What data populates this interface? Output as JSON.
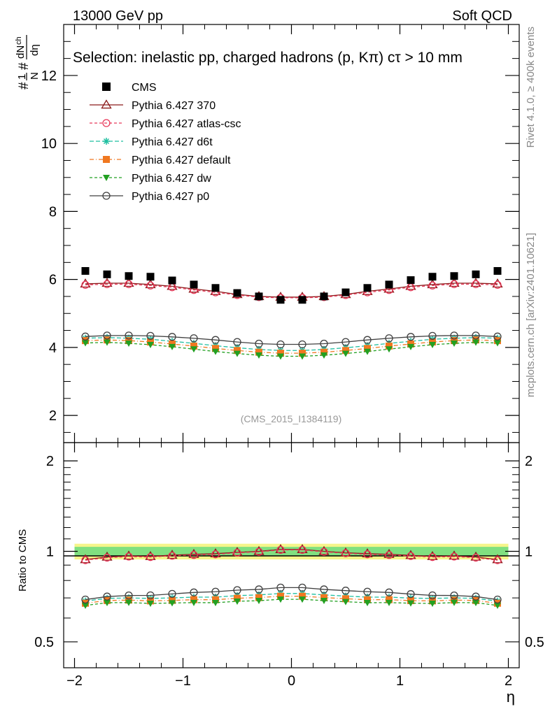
{
  "header": {
    "energy": "13000 GeV pp",
    "category": "Soft QCD",
    "selection": "Selection: inelastic pp, charged hadrons (p, Kπ) cτ > 10 mm",
    "watermark": "(CMS_2015_I1384119)",
    "rivet": "Rivet 4.1.0, ≥ 400k events",
    "mcplots": "mcplots.cern.ch [arXiv:2401.10621]"
  },
  "chart_data": {
    "type": "line",
    "xlabel": "η",
    "ylabel_main": "dN_ch/dη (1/N)",
    "ylabel_ratio": "Ratio to CMS",
    "xlim": [
      -2.1,
      2.1
    ],
    "ylim_main": [
      1.2,
      13.5
    ],
    "ylim_ratio": [
      0.41,
      2.3
    ],
    "ratio_scale": "log",
    "x_ticks": [
      -2,
      -1,
      0,
      1,
      2
    ],
    "x_tick_labels": [
      "−2",
      "−1",
      "0",
      "1",
      "2"
    ],
    "y_ticks_main": [
      2,
      4,
      6,
      8,
      10,
      12
    ],
    "y_tick_labels_main": [
      "2",
      "4",
      "6",
      "8",
      "10",
      "12"
    ],
    "y_ticks_ratio": [
      0.5,
      1,
      2
    ],
    "y_tick_labels_ratio": [
      "0.5",
      "1",
      "2"
    ],
    "x": [
      -1.9,
      -1.7,
      -1.5,
      -1.3,
      -1.1,
      -0.9,
      -0.7,
      -0.5,
      -0.3,
      -0.1,
      0.1,
      0.3,
      0.5,
      0.7,
      0.9,
      1.1,
      1.3,
      1.5,
      1.7,
      1.9
    ],
    "data": {
      "name": "CMS",
      "color": "#000000",
      "values": [
        6.25,
        6.15,
        6.1,
        6.08,
        5.97,
        5.85,
        5.75,
        5.6,
        5.5,
        5.4,
        5.4,
        5.5,
        5.62,
        5.75,
        5.85,
        5.98,
        6.08,
        6.1,
        6.15,
        6.25
      ]
    },
    "ratio_band": {
      "inner": 0.035,
      "outer": 0.06,
      "inner_color": "#80e080",
      "outer_color": "#f5f58a"
    },
    "series": [
      {
        "name": "Pythia 6.427 370",
        "color": "#8b1a1a",
        "marker": "triangle-open",
        "dash": "solid",
        "values": [
          5.87,
          5.89,
          5.89,
          5.85,
          5.8,
          5.72,
          5.65,
          5.56,
          5.5,
          5.48,
          5.48,
          5.5,
          5.56,
          5.65,
          5.72,
          5.8,
          5.85,
          5.89,
          5.89,
          5.87
        ]
      },
      {
        "name": "Pythia 6.427 atlas-csc",
        "color": "#e8395a",
        "marker": "circle-open",
        "dash": "4,3",
        "values": [
          5.84,
          5.86,
          5.86,
          5.82,
          5.77,
          5.69,
          5.62,
          5.54,
          5.48,
          5.46,
          5.46,
          5.48,
          5.54,
          5.62,
          5.69,
          5.77,
          5.82,
          5.86,
          5.86,
          5.84
        ]
      },
      {
        "name": "Pythia 6.427 d6t",
        "color": "#1fbfa0",
        "marker": "star",
        "dash": "6,3",
        "values": [
          4.27,
          4.29,
          4.27,
          4.24,
          4.18,
          4.12,
          4.05,
          3.99,
          3.94,
          3.91,
          3.91,
          3.94,
          3.99,
          4.05,
          4.12,
          4.18,
          4.24,
          4.27,
          4.29,
          4.27
        ]
      },
      {
        "name": "Pythia 6.427 default",
        "color": "#f07820",
        "marker": "square",
        "dash": "6,3,1,3",
        "values": [
          4.2,
          4.22,
          4.2,
          4.16,
          4.1,
          4.04,
          3.97,
          3.91,
          3.86,
          3.83,
          3.83,
          3.86,
          3.91,
          3.97,
          4.04,
          4.1,
          4.16,
          4.2,
          4.22,
          4.2
        ]
      },
      {
        "name": "Pythia 6.427 dw",
        "color": "#22a022",
        "marker": "triangle-down",
        "dash": "4,3",
        "values": [
          4.13,
          4.15,
          4.12,
          4.08,
          4.02,
          3.95,
          3.88,
          3.82,
          3.77,
          3.74,
          3.74,
          3.77,
          3.82,
          3.88,
          3.95,
          4.02,
          4.08,
          4.12,
          4.15,
          4.13
        ]
      },
      {
        "name": "Pythia 6.427 p0",
        "color": "#404040",
        "marker": "circle-open",
        "dash": "solid",
        "values": [
          4.32,
          4.35,
          4.35,
          4.34,
          4.31,
          4.27,
          4.22,
          4.16,
          4.11,
          4.09,
          4.09,
          4.11,
          4.16,
          4.22,
          4.27,
          4.31,
          4.34,
          4.35,
          4.35,
          4.32
        ]
      }
    ]
  }
}
